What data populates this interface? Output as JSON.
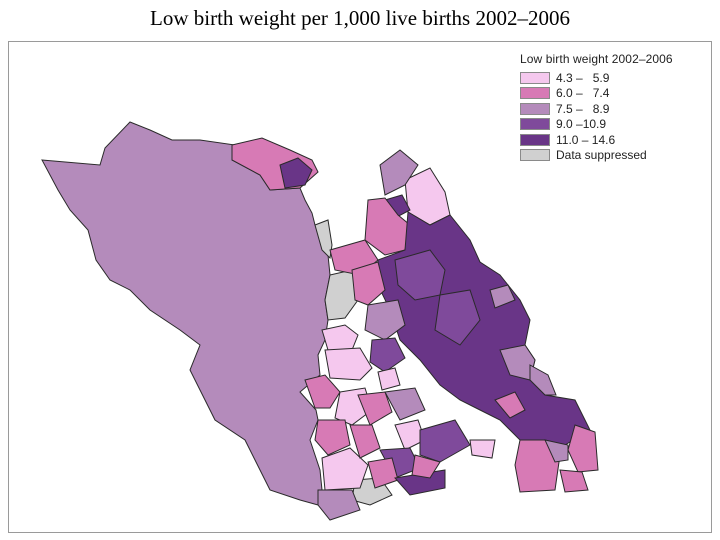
{
  "title": "Low birth weight per 1,000 live births 2002–2006",
  "legend": {
    "title": "Low birth weight 2002–2006",
    "items": [
      {
        "label": "4.3 –   5.9",
        "color": "#f5c8ee"
      },
      {
        "label": "6.0 –   7.4",
        "color": "#d77ab5"
      },
      {
        "label": "7.5 –   8.9",
        "color": "#b48bbb"
      },
      {
        "label": "9.0 –10.9",
        "color": "#7f4a9b"
      },
      {
        "label": "11.0 – 14.6",
        "color": "#693587"
      },
      {
        "label": "Data suppressed",
        "color": "#d0d0d0"
      }
    ]
  },
  "colors": {
    "border": "#2a2a2a",
    "frame": "#9a9a9a"
  }
}
